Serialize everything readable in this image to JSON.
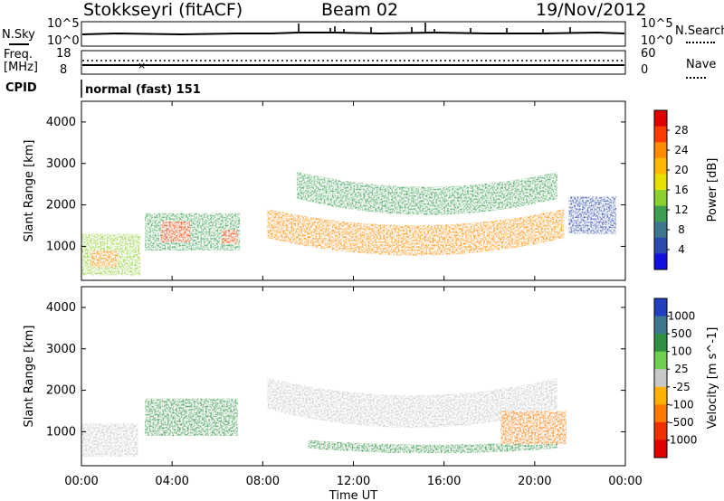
{
  "header": {
    "station": "Stokkseyri (fitACF)",
    "beam": "Beam 02",
    "date": "19/Nov/2012"
  },
  "noise_panel": {
    "left_label": "N.Sky",
    "right_label": "N.Search",
    "tick_top": "10^5",
    "tick_bottom": "10^0"
  },
  "freq_panel": {
    "left_label_1": "Freq.",
    "left_label_2": "[MHz]",
    "right_label": "Nave",
    "left_ticks": [
      "18",
      "8"
    ],
    "right_ticks": [
      "60",
      "0"
    ]
  },
  "cpid_panel": {
    "label": "CPID",
    "mode": "normal (fast) 151"
  },
  "axes": {
    "ylabel": "Slant Range [km]",
    "xlabel": "Time UT",
    "x_ticks": [
      "00:00",
      "04:00",
      "08:00",
      "12:00",
      "16:00",
      "20:00",
      "00:00"
    ],
    "y_ticks": [
      "1000",
      "2000",
      "3000",
      "4000"
    ]
  },
  "chart_data": [
    {
      "type": "heatmap",
      "panel": "power",
      "title": "",
      "ylabel": "Slant Range [km]",
      "xlabel": "",
      "xlim": [
        0,
        24
      ],
      "ylim": [
        180,
        4500
      ],
      "colorbar": {
        "label": "Power [dB]",
        "ticks": [
          "28",
          "24",
          "20",
          "16",
          "12",
          "8",
          "4"
        ],
        "colors": [
          "#e00000",
          "#ff3a00",
          "#ff8c00",
          "#ffb800",
          "#e8e000",
          "#8cd030",
          "#3ca050",
          "#3c7890",
          "#2a4ab0",
          "#1010e0"
        ]
      },
      "regions": [
        {
          "time_range": [
            0,
            2.6
          ],
          "range_km": [
            300,
            1300
          ],
          "level_dB": 14
        },
        {
          "time_range": [
            0.4,
            1.6
          ],
          "range_km": [
            500,
            900
          ],
          "level_dB": 24
        },
        {
          "time_range": [
            2.8,
            7.0
          ],
          "range_km": [
            900,
            1800
          ],
          "level_dB": 12
        },
        {
          "time_range": [
            3.5,
            4.8
          ],
          "range_km": [
            1100,
            1600
          ],
          "level_dB": 26
        },
        {
          "time_range": [
            6.2,
            6.9
          ],
          "range_km": [
            1050,
            1400
          ],
          "level_dB": 26
        },
        {
          "time_range": [
            8.2,
            21.3
          ],
          "range_km": [
            500,
            1900
          ],
          "level_dB": 22
        },
        {
          "time_range": [
            9.5,
            21.0
          ],
          "range_km": [
            1500,
            2800
          ],
          "level_dB": 12
        },
        {
          "time_range": [
            21.5,
            23.6
          ],
          "range_km": [
            1300,
            2200
          ],
          "level_dB": 8
        }
      ]
    },
    {
      "type": "heatmap",
      "panel": "velocity",
      "title": "",
      "ylabel": "Slant Range [km]",
      "xlabel": "Time UT",
      "xlim": [
        0,
        24
      ],
      "ylim": [
        180,
        4500
      ],
      "colorbar": {
        "label": "Velocity [m s^-1]",
        "ticks": [
          "1000",
          "500",
          "100",
          "25",
          "-25",
          "-100",
          "-500",
          "-1000"
        ],
        "colors": [
          "#2040c0",
          "#3c7890",
          "#2e9040",
          "#6ed050",
          "#c8c8c8",
          "#ffb000",
          "#ff7800",
          "#f03000",
          "#e00000"
        ]
      },
      "regions": [
        {
          "time_range": [
            0,
            2.5
          ],
          "range_km": [
            400,
            1200
          ],
          "velocity_ms": 0
        },
        {
          "time_range": [
            2.8,
            6.9
          ],
          "range_km": [
            900,
            1800
          ],
          "velocity_ms": 200
        },
        {
          "time_range": [
            8.2,
            21.0
          ],
          "range_km": [
            800,
            2300
          ],
          "velocity_ms": 0
        },
        {
          "time_range": [
            10.0,
            21.0
          ],
          "range_km": [
            400,
            800
          ],
          "velocity_ms": 150
        },
        {
          "time_range": [
            18.5,
            21.4
          ],
          "range_km": [
            700,
            1500
          ],
          "velocity_ms": -300
        }
      ]
    }
  ]
}
